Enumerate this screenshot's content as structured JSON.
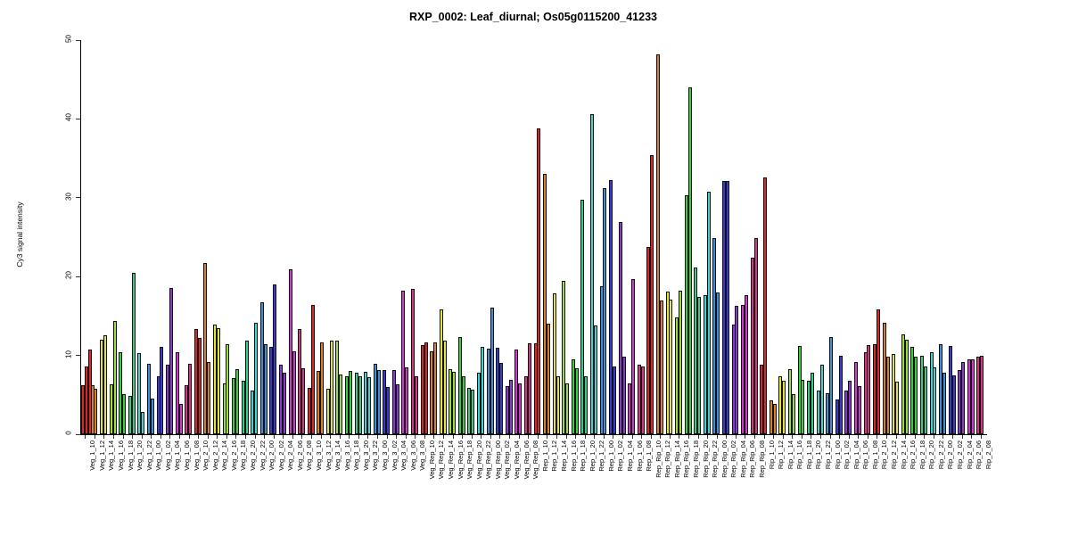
{
  "chart_data": {
    "type": "bar",
    "title": "RXP_0002: Leaf_diurnal; Os05g0115200_41233",
    "ylabel": "Cy3 signal intensity",
    "xlabel": "",
    "ylim": [
      0,
      50
    ],
    "yticks": [
      0,
      10,
      20,
      30,
      40,
      50
    ],
    "grid": false,
    "legend": "none",
    "bars_per_category": "2 (first category has 3)",
    "palette_cycle_per_day": [
      "#d42a2a",
      "#d98128",
      "#e3e33c",
      "#9fdd3a",
      "#3ecf3e",
      "#35cf8a",
      "#45d4d4",
      "#3f8fd9",
      "#3a3ad1",
      "#8a3ad1",
      "#d13ad1",
      "#d13a80"
    ],
    "groups": [
      {
        "label": "Veg_1_10",
        "values": [
          6.2,
          8.6,
          10.8
        ]
      },
      {
        "label": "Veg_1_12",
        "values": [
          6.2,
          5.8
        ]
      },
      {
        "label": "Veg_1_14",
        "values": [
          12.0,
          12.6
        ]
      },
      {
        "label": "Veg_1_16",
        "values": [
          6.3,
          14.4
        ]
      },
      {
        "label": "Veg_1_18",
        "values": [
          10.4,
          5.1
        ]
      },
      {
        "label": "Veg_1_20",
        "values": [
          4.9,
          20.5
        ]
      },
      {
        "label": "Veg_1_22",
        "values": [
          10.3,
          2.8
        ]
      },
      {
        "label": "Veg_1_00",
        "values": [
          8.9,
          4.5
        ]
      },
      {
        "label": "Veg_1_02",
        "values": [
          7.4,
          11.1
        ]
      },
      {
        "label": "Veg_1_04",
        "values": [
          8.8,
          18.5
        ]
      },
      {
        "label": "Veg_1_06",
        "values": [
          10.4,
          3.8
        ]
      },
      {
        "label": "Veg_1_08",
        "values": [
          6.2,
          8.9
        ]
      },
      {
        "label": "Veg_2_10",
        "values": [
          13.4,
          12.2
        ]
      },
      {
        "label": "Veg_2_12",
        "values": [
          21.7,
          9.2
        ]
      },
      {
        "label": "Veg_2_14",
        "values": [
          13.9,
          13.5
        ]
      },
      {
        "label": "Veg_2_16",
        "values": [
          6.4,
          11.4
        ]
      },
      {
        "label": "Veg_2_18",
        "values": [
          7.1,
          8.3
        ]
      },
      {
        "label": "Veg_2_20",
        "values": [
          6.8,
          11.9
        ]
      },
      {
        "label": "Veg_2_22",
        "values": [
          5.5,
          14.1
        ]
      },
      {
        "label": "Veg_2_00",
        "values": [
          16.7,
          11.4
        ]
      },
      {
        "label": "Veg_2_02",
        "values": [
          11.1,
          19.0
        ]
      },
      {
        "label": "Veg_2_04",
        "values": [
          8.8,
          7.8
        ]
      },
      {
        "label": "Veg_2_06",
        "values": [
          20.9,
          10.5
        ]
      },
      {
        "label": "Veg_2_08",
        "values": [
          13.3,
          8.4
        ]
      },
      {
        "label": "Veg_3_10",
        "values": [
          5.9,
          16.4
        ]
      },
      {
        "label": "Veg_3_12",
        "values": [
          8.0,
          11.7
        ]
      },
      {
        "label": "Veg_3_14",
        "values": [
          5.8,
          11.9
        ]
      },
      {
        "label": "Veg_3_16",
        "values": [
          11.9,
          7.6
        ]
      },
      {
        "label": "Veg_3_18",
        "values": [
          7.3,
          8.0
        ]
      },
      {
        "label": "Veg_3_20",
        "values": [
          7.8,
          7.3
        ]
      },
      {
        "label": "Veg_3_22",
        "values": [
          7.9,
          7.2
        ]
      },
      {
        "label": "Veg_3_00",
        "values": [
          8.9,
          8.1
        ]
      },
      {
        "label": "Veg_3_02",
        "values": [
          8.2,
          6.0
        ]
      },
      {
        "label": "Veg_3_04",
        "values": [
          8.1,
          6.3
        ]
      },
      {
        "label": "Veg_3_06",
        "values": [
          18.2,
          8.5
        ]
      },
      {
        "label": "Veg_3_08",
        "values": [
          18.4,
          7.4
        ]
      },
      {
        "label": "Veg_Rep_10",
        "values": [
          11.3,
          11.6
        ]
      },
      {
        "label": "Veg_Rep_12",
        "values": [
          10.5,
          11.7
        ]
      },
      {
        "label": "Veg_Rep_14",
        "values": [
          15.8,
          11.9
        ]
      },
      {
        "label": "Veg_Rep_16",
        "values": [
          8.3,
          7.9
        ]
      },
      {
        "label": "Veg_Rep_18",
        "values": [
          12.3,
          7.4
        ]
      },
      {
        "label": "Veg_Rep_20",
        "values": [
          5.9,
          5.7
        ]
      },
      {
        "label": "Veg_Rep_22",
        "values": [
          7.8,
          11.1
        ]
      },
      {
        "label": "Veg_Rep_00",
        "values": [
          10.9,
          16.1
        ]
      },
      {
        "label": "Veg_Rep_02",
        "values": [
          11.0,
          9.1
        ]
      },
      {
        "label": "Veg_Rep_04",
        "values": [
          6.1,
          6.9
        ]
      },
      {
        "label": "Veg_Rep_06",
        "values": [
          10.8,
          6.4
        ]
      },
      {
        "label": "Veg_Rep_08",
        "values": [
          7.3,
          11.5
        ]
      },
      {
        "label": "Rep_1_10",
        "values": [
          11.5,
          38.8
        ]
      },
      {
        "label": "Rep_1_12",
        "values": [
          33.0,
          14.0
        ]
      },
      {
        "label": "Rep_1_14",
        "values": [
          17.9,
          7.3
        ]
      },
      {
        "label": "Rep_1_16",
        "values": [
          19.5,
          6.5
        ]
      },
      {
        "label": "Rep_1_18",
        "values": [
          9.5,
          8.4
        ]
      },
      {
        "label": "Rep_1_20",
        "values": [
          29.8,
          7.4
        ]
      },
      {
        "label": "Rep_1_22",
        "values": [
          40.6,
          13.8
        ]
      },
      {
        "label": "Rep_1_00",
        "values": [
          18.8,
          31.2
        ]
      },
      {
        "label": "Rep_1_02",
        "values": [
          32.2,
          8.6
        ]
      },
      {
        "label": "Rep_1_04",
        "values": [
          26.9,
          9.8
        ]
      },
      {
        "label": "Rep_1_06",
        "values": [
          6.4,
          19.7
        ]
      },
      {
        "label": "Rep_1_08",
        "values": [
          8.8,
          8.6
        ]
      },
      {
        "label": "Rep_Rip_10",
        "values": [
          23.8,
          35.4
        ]
      },
      {
        "label": "Rep_Rip_12",
        "values": [
          48.2,
          17.0
        ]
      },
      {
        "label": "Rep_Rip_14",
        "values": [
          18.1,
          17.1
        ]
      },
      {
        "label": "Rep_Rip_16",
        "values": [
          14.8,
          18.2
        ]
      },
      {
        "label": "Rep_Rip_18",
        "values": [
          30.3,
          44.0
        ]
      },
      {
        "label": "Rep_Rip_20",
        "values": [
          21.2,
          17.4
        ]
      },
      {
        "label": "Rep_Rip_22",
        "values": [
          17.6,
          30.8
        ]
      },
      {
        "label": "Rep_Rip_00",
        "values": [
          24.9,
          18.0
        ]
      },
      {
        "label": "Rep_Rip_02",
        "values": [
          32.1,
          32.1
        ]
      },
      {
        "label": "Rep_Rip_04",
        "values": [
          13.9,
          16.3
        ]
      },
      {
        "label": "Rep_Rip_06",
        "values": [
          16.4,
          17.6
        ]
      },
      {
        "label": "Rep_Rip_08",
        "values": [
          22.4,
          24.9
        ]
      },
      {
        "label": "Rip_1_10",
        "values": [
          8.8,
          32.6
        ]
      },
      {
        "label": "Rip_1_12",
        "values": [
          4.3,
          3.9
        ]
      },
      {
        "label": "Rip_1_14",
        "values": [
          7.4,
          6.8
        ]
      },
      {
        "label": "Rip_1_16",
        "values": [
          8.3,
          5.1
        ]
      },
      {
        "label": "Rip_1_18",
        "values": [
          11.2,
          6.9
        ]
      },
      {
        "label": "Rip_1_20",
        "values": [
          6.8,
          7.8
        ]
      },
      {
        "label": "Rip_1_22",
        "values": [
          5.5,
          8.8
        ]
      },
      {
        "label": "Rip_1_00",
        "values": [
          5.2,
          12.3
        ]
      },
      {
        "label": "Rip_1_02",
        "values": [
          4.4,
          9.9
        ]
      },
      {
        "label": "Rip_1_04",
        "values": [
          5.5,
          6.8
        ]
      },
      {
        "label": "Rip_1_06",
        "values": [
          9.2,
          6.1
        ]
      },
      {
        "label": "Rip_1_08",
        "values": [
          10.4,
          11.3
        ]
      },
      {
        "label": "Rip_2_10",
        "values": [
          11.4,
          15.8
        ]
      },
      {
        "label": "Rip_2_12",
        "values": [
          14.1,
          9.8
        ]
      },
      {
        "label": "Rip_2_14",
        "values": [
          10.2,
          6.7
        ]
      },
      {
        "label": "Rip_2_16",
        "values": [
          12.7,
          12.0
        ]
      },
      {
        "label": "Rip_2_18",
        "values": [
          11.1,
          9.8
        ]
      },
      {
        "label": "Rip_2_20",
        "values": [
          10.0,
          8.6
        ]
      },
      {
        "label": "Rip_2_22",
        "values": [
          10.4,
          8.5
        ]
      },
      {
        "label": "Rip_2_00",
        "values": [
          11.4,
          7.8
        ]
      },
      {
        "label": "Rip_2_02",
        "values": [
          11.2,
          7.5
        ]
      },
      {
        "label": "Rip_2_04",
        "values": [
          8.2,
          9.2
        ]
      },
      {
        "label": "Rip_2_06",
        "values": [
          9.5,
          9.5
        ]
      },
      {
        "label": "Rip_2_08",
        "values": [
          9.8,
          9.9
        ]
      }
    ]
  }
}
